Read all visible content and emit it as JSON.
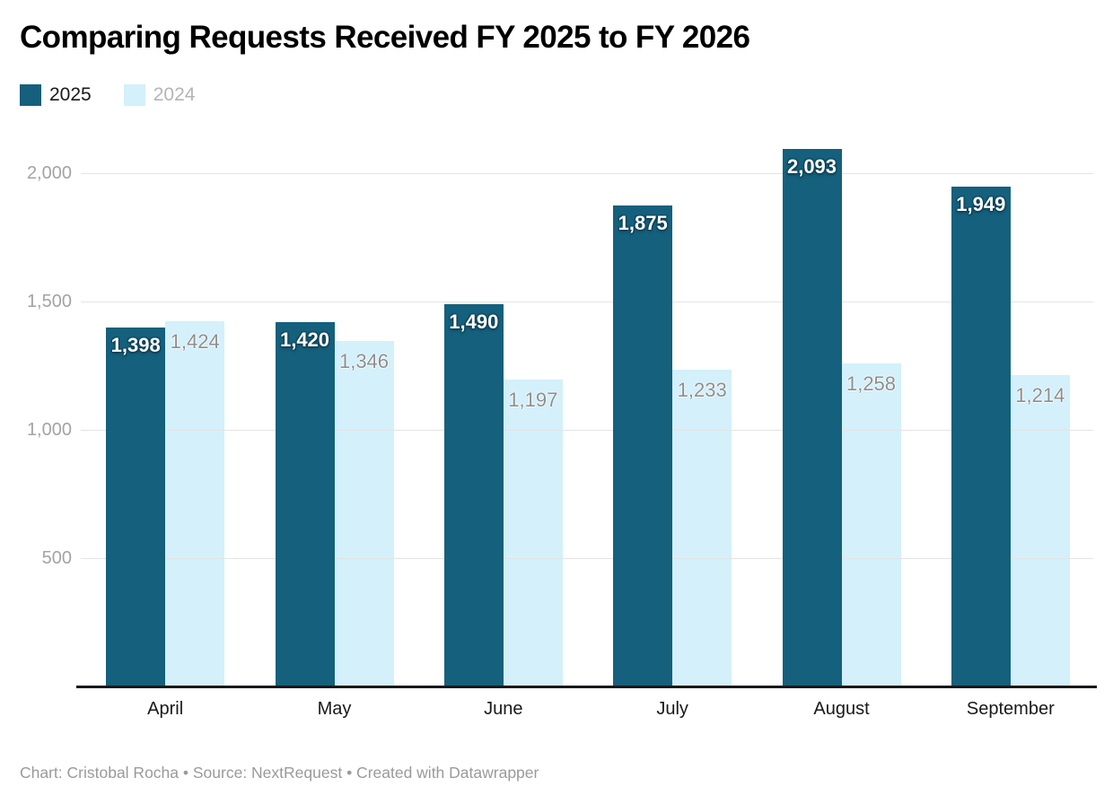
{
  "title": "Comparing Requests Received FY 2025 to FY 2026",
  "footer": "Chart: Cristobal Rocha • Source: NextRequest • Created with Datawrapper",
  "colors": {
    "series_2025": "#15607d",
    "series_2024": "#d3f0fb",
    "axis_line": "#18191c",
    "gridline": "#e4e4e4",
    "tick_text": "#a3a3a3",
    "footer_text": "#9a9a9a"
  },
  "chart_data": {
    "type": "bar",
    "title": "Comparing Requests Received FY 2025 to FY 2026",
    "categories": [
      "April",
      "May",
      "June",
      "July",
      "August",
      "September"
    ],
    "series": [
      {
        "name": "2025",
        "color": "#15607d",
        "legend_text_color": "#1a1a1a",
        "label_style": "white-bold-on-bar",
        "values": [
          1398,
          1420,
          1490,
          1875,
          2093,
          1949
        ]
      },
      {
        "name": "2024",
        "color": "#d3f0fb",
        "legend_text_color": "#b5b5b5",
        "label_style": "gray-on-bar",
        "values": [
          1424,
          1346,
          1197,
          1233,
          1258,
          1214
        ]
      }
    ],
    "xlabel": "",
    "ylabel": "",
    "ylim": [
      0,
      2185
    ],
    "yticks": [
      500,
      1000,
      1500,
      2000
    ],
    "grid": "horizontal",
    "gridlines_over_light_bars": true,
    "legend_position": "top-left",
    "value_labels": true,
    "value_label_format": "thousands-comma"
  }
}
